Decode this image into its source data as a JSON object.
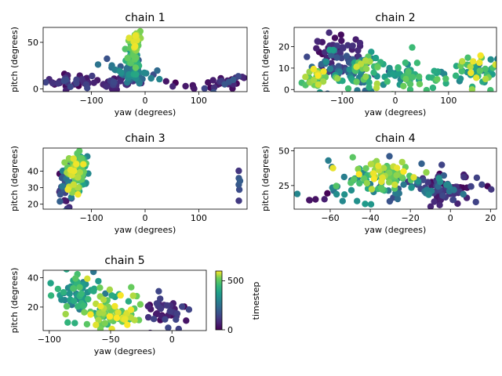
{
  "colorbar": {
    "label": "timestep",
    "ticks": [
      0,
      500
    ],
    "range": [
      0,
      600
    ]
  },
  "chart_data": [
    {
      "type": "scatter",
      "title": "chain 1",
      "xlabel": "yaw (degrees)",
      "ylabel": "pitch (degrees)",
      "xlim": [
        -190,
        190
      ],
      "ylim": [
        -3,
        66
      ],
      "xticks": [
        -100,
        0,
        100
      ],
      "yticks": [
        0,
        50
      ],
      "clusters": [
        {
          "cx": -140,
          "cy": 8,
          "sx": 28,
          "sy": 4,
          "n": 40,
          "t": [
            0,
            160
          ]
        },
        {
          "cx": -60,
          "cy": 6,
          "sx": 20,
          "sy": 3,
          "n": 30,
          "t": [
            0,
            150
          ]
        },
        {
          "cx": 150,
          "cy": 6,
          "sx": 25,
          "sy": 4,
          "n": 25,
          "t": [
            0,
            200
          ]
        },
        {
          "cx": 70,
          "cy": 3,
          "sx": 20,
          "sy": 2,
          "n": 8,
          "t": [
            0,
            80
          ]
        },
        {
          "cx": -25,
          "cy": 18,
          "sx": 18,
          "sy": 7,
          "n": 60,
          "t": [
            150,
            350
          ]
        },
        {
          "cx": -22,
          "cy": 35,
          "sx": 6,
          "sy": 8,
          "n": 45,
          "t": [
            350,
            520
          ]
        },
        {
          "cx": -20,
          "cy": 52,
          "sx": 5,
          "sy": 6,
          "n": 40,
          "t": [
            480,
            600
          ]
        }
      ]
    },
    {
      "type": "scatter",
      "title": "chain 2",
      "xlabel": "yaw (degrees)",
      "ylabel": "pitch (degrees)",
      "xlim": [
        -190,
        190
      ],
      "ylim": [
        -1,
        29
      ],
      "xticks": [
        -100,
        0,
        100
      ],
      "yticks": [
        0,
        10,
        20
      ],
      "clusters": [
        {
          "cx": -115,
          "cy": 17,
          "sx": 25,
          "sy": 5,
          "n": 45,
          "t": [
            0,
            120
          ]
        },
        {
          "cx": -110,
          "cy": 10,
          "sx": 30,
          "sy": 4,
          "n": 60,
          "t": [
            100,
            400
          ]
        },
        {
          "cx": -60,
          "cy": 8,
          "sx": 25,
          "sy": 4,
          "n": 50,
          "t": [
            200,
            600
          ]
        },
        {
          "cx": 20,
          "cy": 7,
          "sx": 45,
          "sy": 4,
          "n": 60,
          "t": [
            300,
            520
          ]
        },
        {
          "cx": 150,
          "cy": 8,
          "sx": 25,
          "sy": 4,
          "n": 45,
          "t": [
            250,
            600
          ]
        },
        {
          "cx": -150,
          "cy": 6,
          "sx": 15,
          "sy": 3,
          "n": 25,
          "t": [
            450,
            600
          ]
        }
      ]
    },
    {
      "type": "scatter",
      "title": "chain 3",
      "xlabel": "yaw (degrees)",
      "ylabel": "pitch (degrees)",
      "xlim": [
        -190,
        190
      ],
      "ylim": [
        17,
        54
      ],
      "xticks": [
        -100,
        0,
        100
      ],
      "yticks": [
        20,
        30,
        40
      ],
      "clusters": [
        {
          "cx": -150,
          "cy": 33,
          "sx": 6,
          "sy": 6,
          "n": 45,
          "t": [
            0,
            300
          ]
        },
        {
          "cx": -120,
          "cy": 42,
          "sx": 8,
          "sy": 5,
          "n": 50,
          "t": [
            300,
            520
          ]
        },
        {
          "cx": -132,
          "cy": 38,
          "sx": 8,
          "sy": 6,
          "n": 60,
          "t": [
            450,
            600
          ]
        },
        {
          "cx": 175,
          "cy": 35,
          "sx": 2,
          "sy": 4,
          "n": 6,
          "t": [
            100,
            200
          ]
        }
      ]
    },
    {
      "type": "scatter",
      "title": "chain 4",
      "xlabel": "yaw (degrees)",
      "ylabel": "pitch (degrees)",
      "xlim": [
        -78,
        23
      ],
      "ylim": [
        8,
        52
      ],
      "xticks": [
        -60,
        -40,
        -20,
        0,
        20
      ],
      "yticks": [
        25,
        50
      ],
      "clusters": [
        {
          "cx": 0,
          "cy": 22,
          "sx": 9,
          "sy": 5,
          "n": 55,
          "t": [
            0,
            150
          ]
        },
        {
          "cx": -15,
          "cy": 25,
          "sx": 10,
          "sy": 6,
          "n": 50,
          "t": [
            100,
            350
          ]
        },
        {
          "cx": -45,
          "cy": 25,
          "sx": 10,
          "sy": 8,
          "n": 40,
          "t": [
            250,
            500
          ]
        },
        {
          "cx": -32,
          "cy": 33,
          "sx": 8,
          "sy": 5,
          "n": 60,
          "t": [
            480,
            600
          ]
        },
        {
          "cx": -65,
          "cy": 15,
          "sx": 6,
          "sy": 3,
          "n": 5,
          "t": [
            0,
            60
          ]
        }
      ]
    },
    {
      "type": "scatter",
      "title": "chain 5",
      "xlabel": "yaw (degrees)",
      "ylabel": "pitch (degrees)",
      "xlim": [
        -105,
        28
      ],
      "ylim": [
        4,
        45
      ],
      "xticks": [
        -100,
        -50,
        0
      ],
      "yticks": [
        20,
        40
      ],
      "clusters": [
        {
          "cx": -5,
          "cy": 17,
          "sx": 10,
          "sy": 5,
          "n": 40,
          "t": [
            0,
            150
          ]
        },
        {
          "cx": -75,
          "cy": 30,
          "sx": 10,
          "sy": 7,
          "n": 55,
          "t": [
            250,
            500
          ]
        },
        {
          "cx": -55,
          "cy": 20,
          "sx": 12,
          "sy": 8,
          "n": 50,
          "t": [
            380,
            600
          ]
        },
        {
          "cx": -45,
          "cy": 14,
          "sx": 10,
          "sy": 4,
          "n": 45,
          "t": [
            480,
            600
          ]
        }
      ]
    }
  ]
}
